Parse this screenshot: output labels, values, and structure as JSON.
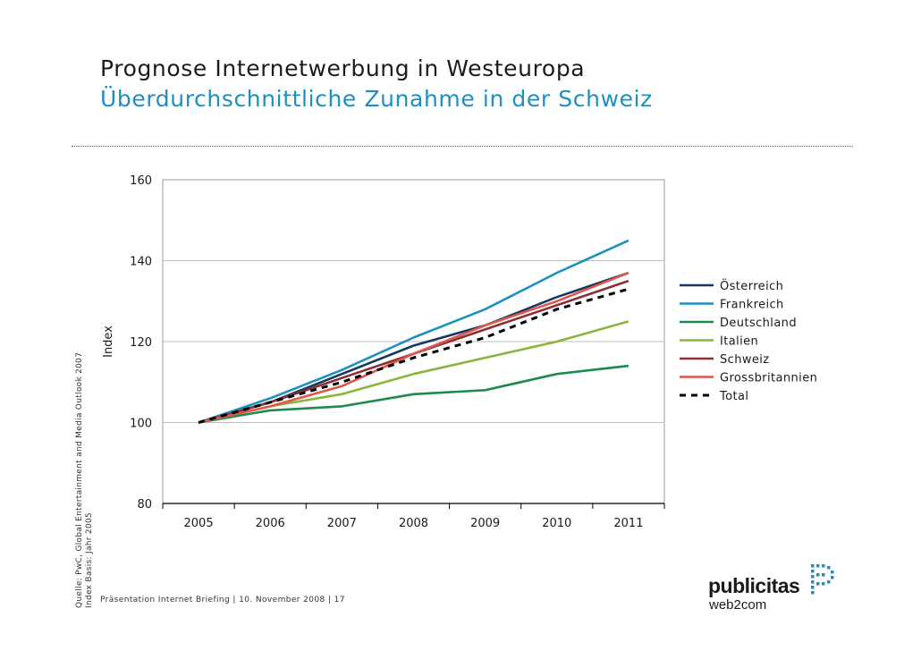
{
  "header": {
    "title": "Prognose Internetwerbung in Westeuropa",
    "subtitle": "Überdurchschnittliche Zunahme in der Schweiz"
  },
  "source": {
    "line1": "Quelle: PwC, Global Entertainment and Media Outlook 2007",
    "line2": "Index Basis: Jahr 2005"
  },
  "footer": {
    "text": "Präsentation Internet Briefing | 10. November 2008 | 17"
  },
  "logo": {
    "name": "publicitas",
    "tagline": "web2com",
    "accent_color": "#1e90c0"
  },
  "chart_data": {
    "type": "line",
    "title": "",
    "xlabel": "",
    "ylabel": "Index",
    "categories": [
      "2005",
      "2006",
      "2007",
      "2008",
      "2009",
      "2010",
      "2011"
    ],
    "ylim": [
      80,
      160
    ],
    "yticks": [
      80,
      100,
      120,
      140,
      160
    ],
    "grid": true,
    "legend_position": "right",
    "series": [
      {
        "name": "Österreich",
        "color": "#17375e",
        "dash": false,
        "values": [
          100,
          105,
          112,
          119,
          124,
          131,
          137
        ]
      },
      {
        "name": "Frankreich",
        "color": "#1e90c0",
        "dash": false,
        "values": [
          100,
          106,
          113,
          121,
          128,
          137,
          145
        ]
      },
      {
        "name": "Deutschland",
        "color": "#1e8a50",
        "dash": false,
        "values": [
          100,
          103,
          104,
          107,
          108,
          112,
          114
        ]
      },
      {
        "name": "Italien",
        "color": "#8ab43a",
        "dash": false,
        "values": [
          100,
          104,
          107,
          112,
          116,
          120,
          125
        ]
      },
      {
        "name": "Schweiz",
        "color": "#8b3036",
        "dash": false,
        "values": [
          100,
          105,
          111,
          117,
          123,
          129,
          135
        ]
      },
      {
        "name": "Grossbritannien",
        "color": "#e0564a",
        "dash": false,
        "values": [
          100,
          104,
          109,
          117,
          124,
          130,
          137
        ]
      },
      {
        "name": "Total",
        "color": "#000000",
        "dash": true,
        "values": [
          100,
          105,
          110,
          116,
          121,
          128,
          133
        ]
      }
    ]
  }
}
